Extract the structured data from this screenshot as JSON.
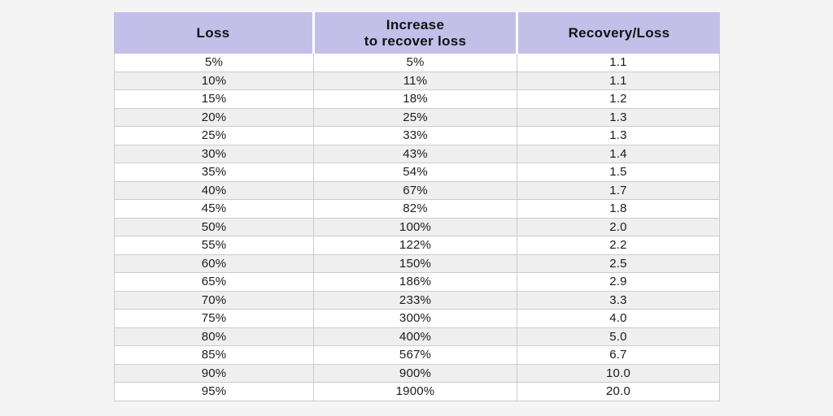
{
  "page": {
    "background": "#f4f4f4"
  },
  "colors": {
    "header_bg": "#c4bfe9",
    "header_text": "#111111",
    "row_bg": "#ffffff",
    "row_alt_bg": "#efefef",
    "border": "#cccccc",
    "cell_text": "#1c1c1c"
  },
  "chart_data": {
    "type": "table",
    "title": "",
    "columns": [
      "Loss",
      "Increase to recover loss",
      "Recovery/Loss"
    ],
    "header_lines": [
      [
        "Loss"
      ],
      [
        "Increase",
        "to recover loss"
      ],
      [
        "Recovery/Loss"
      ]
    ],
    "rows": [
      [
        "5%",
        "5%",
        "1.1"
      ],
      [
        "10%",
        "11%",
        "1.1"
      ],
      [
        "15%",
        "18%",
        "1.2"
      ],
      [
        "20%",
        "25%",
        "1.3"
      ],
      [
        "25%",
        "33%",
        "1.3"
      ],
      [
        "30%",
        "43%",
        "1.4"
      ],
      [
        "35%",
        "54%",
        "1.5"
      ],
      [
        "40%",
        "67%",
        "1.7"
      ],
      [
        "45%",
        "82%",
        "1.8"
      ],
      [
        "50%",
        "100%",
        "2.0"
      ],
      [
        "55%",
        "122%",
        "2.2"
      ],
      [
        "60%",
        "150%",
        "2.5"
      ],
      [
        "65%",
        "186%",
        "2.9"
      ],
      [
        "70%",
        "233%",
        "3.3"
      ],
      [
        "75%",
        "300%",
        "4.0"
      ],
      [
        "80%",
        "400%",
        "5.0"
      ],
      [
        "85%",
        "567%",
        "6.7"
      ],
      [
        "90%",
        "900%",
        "10.0"
      ],
      [
        "95%",
        "1900%",
        "20.0"
      ]
    ]
  }
}
